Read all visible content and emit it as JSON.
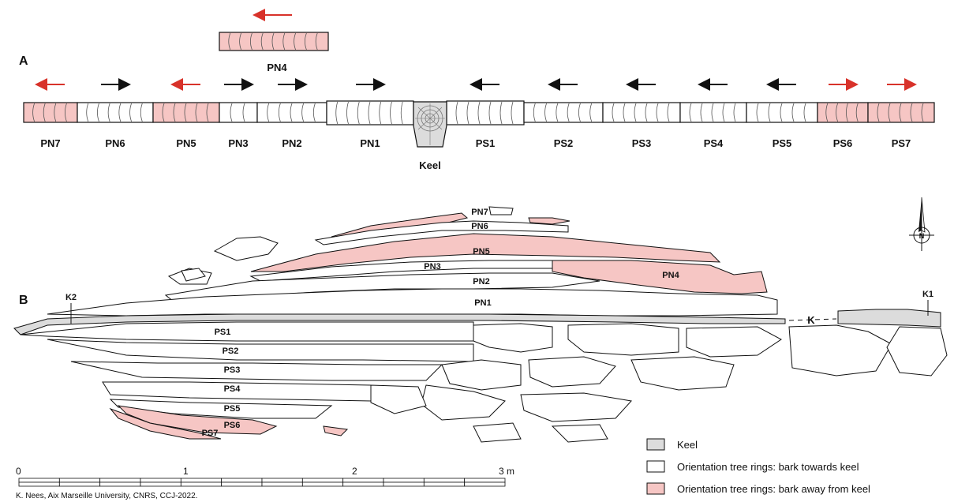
{
  "colors": {
    "away": "#f6c6c4",
    "towards": "#ffffff",
    "keel": "#dcdcdc",
    "arrow_red": "#d8322a",
    "arrow_black": "#111111",
    "outline": "#111111"
  },
  "panelA": {
    "label": "A",
    "keel_label": "Keel",
    "planks": [
      {
        "name": "PN7",
        "dir": "left",
        "type": "away"
      },
      {
        "name": "PN6",
        "dir": "right",
        "type": "towards"
      },
      {
        "name": "PN5",
        "dir": "left",
        "type": "away"
      },
      {
        "name": "PN3",
        "dir": "right",
        "type": "towards"
      },
      {
        "name": "PN2",
        "dir": "right",
        "type": "towards"
      },
      {
        "name": "PN1",
        "dir": "right",
        "type": "towards"
      },
      {
        "name": "PS1",
        "dir": "left",
        "type": "towards"
      },
      {
        "name": "PS2",
        "dir": "left",
        "type": "towards"
      },
      {
        "name": "PS3",
        "dir": "left",
        "type": "towards"
      },
      {
        "name": "PS4",
        "dir": "left",
        "type": "towards"
      },
      {
        "name": "PS5",
        "dir": "left",
        "type": "towards"
      },
      {
        "name": "PS6",
        "dir": "right",
        "type": "away"
      },
      {
        "name": "PS7",
        "dir": "right",
        "type": "away"
      }
    ],
    "extra_plank": {
      "name": "PN4",
      "dir": "left",
      "type": "away"
    }
  },
  "panelB": {
    "label": "B",
    "strakes": {
      "PN7": "PN7",
      "PN6": "PN6",
      "PN5": "PN5",
      "PN4": "PN4",
      "PN3": "PN3",
      "PN2": "PN2",
      "PN1": "PN1",
      "PS1": "PS1",
      "PS2": "PS2",
      "PS3": "PS3",
      "PS4": "PS4",
      "PS5": "PS5",
      "PS6": "PS6",
      "PS7": "PS7"
    },
    "keel_marker": "K",
    "k1": "K1",
    "k2": "K2",
    "north": "N"
  },
  "legend": {
    "keel": "Keel",
    "towards": "Orientation tree rings: bark towards keel",
    "away": "Orientation tree rings: bark away from keel"
  },
  "scale": {
    "ticks": [
      "0",
      "1",
      "2",
      "3 m"
    ]
  },
  "credit": "K. Nees, Aix Marseille University, CNRS, CCJ-2022."
}
